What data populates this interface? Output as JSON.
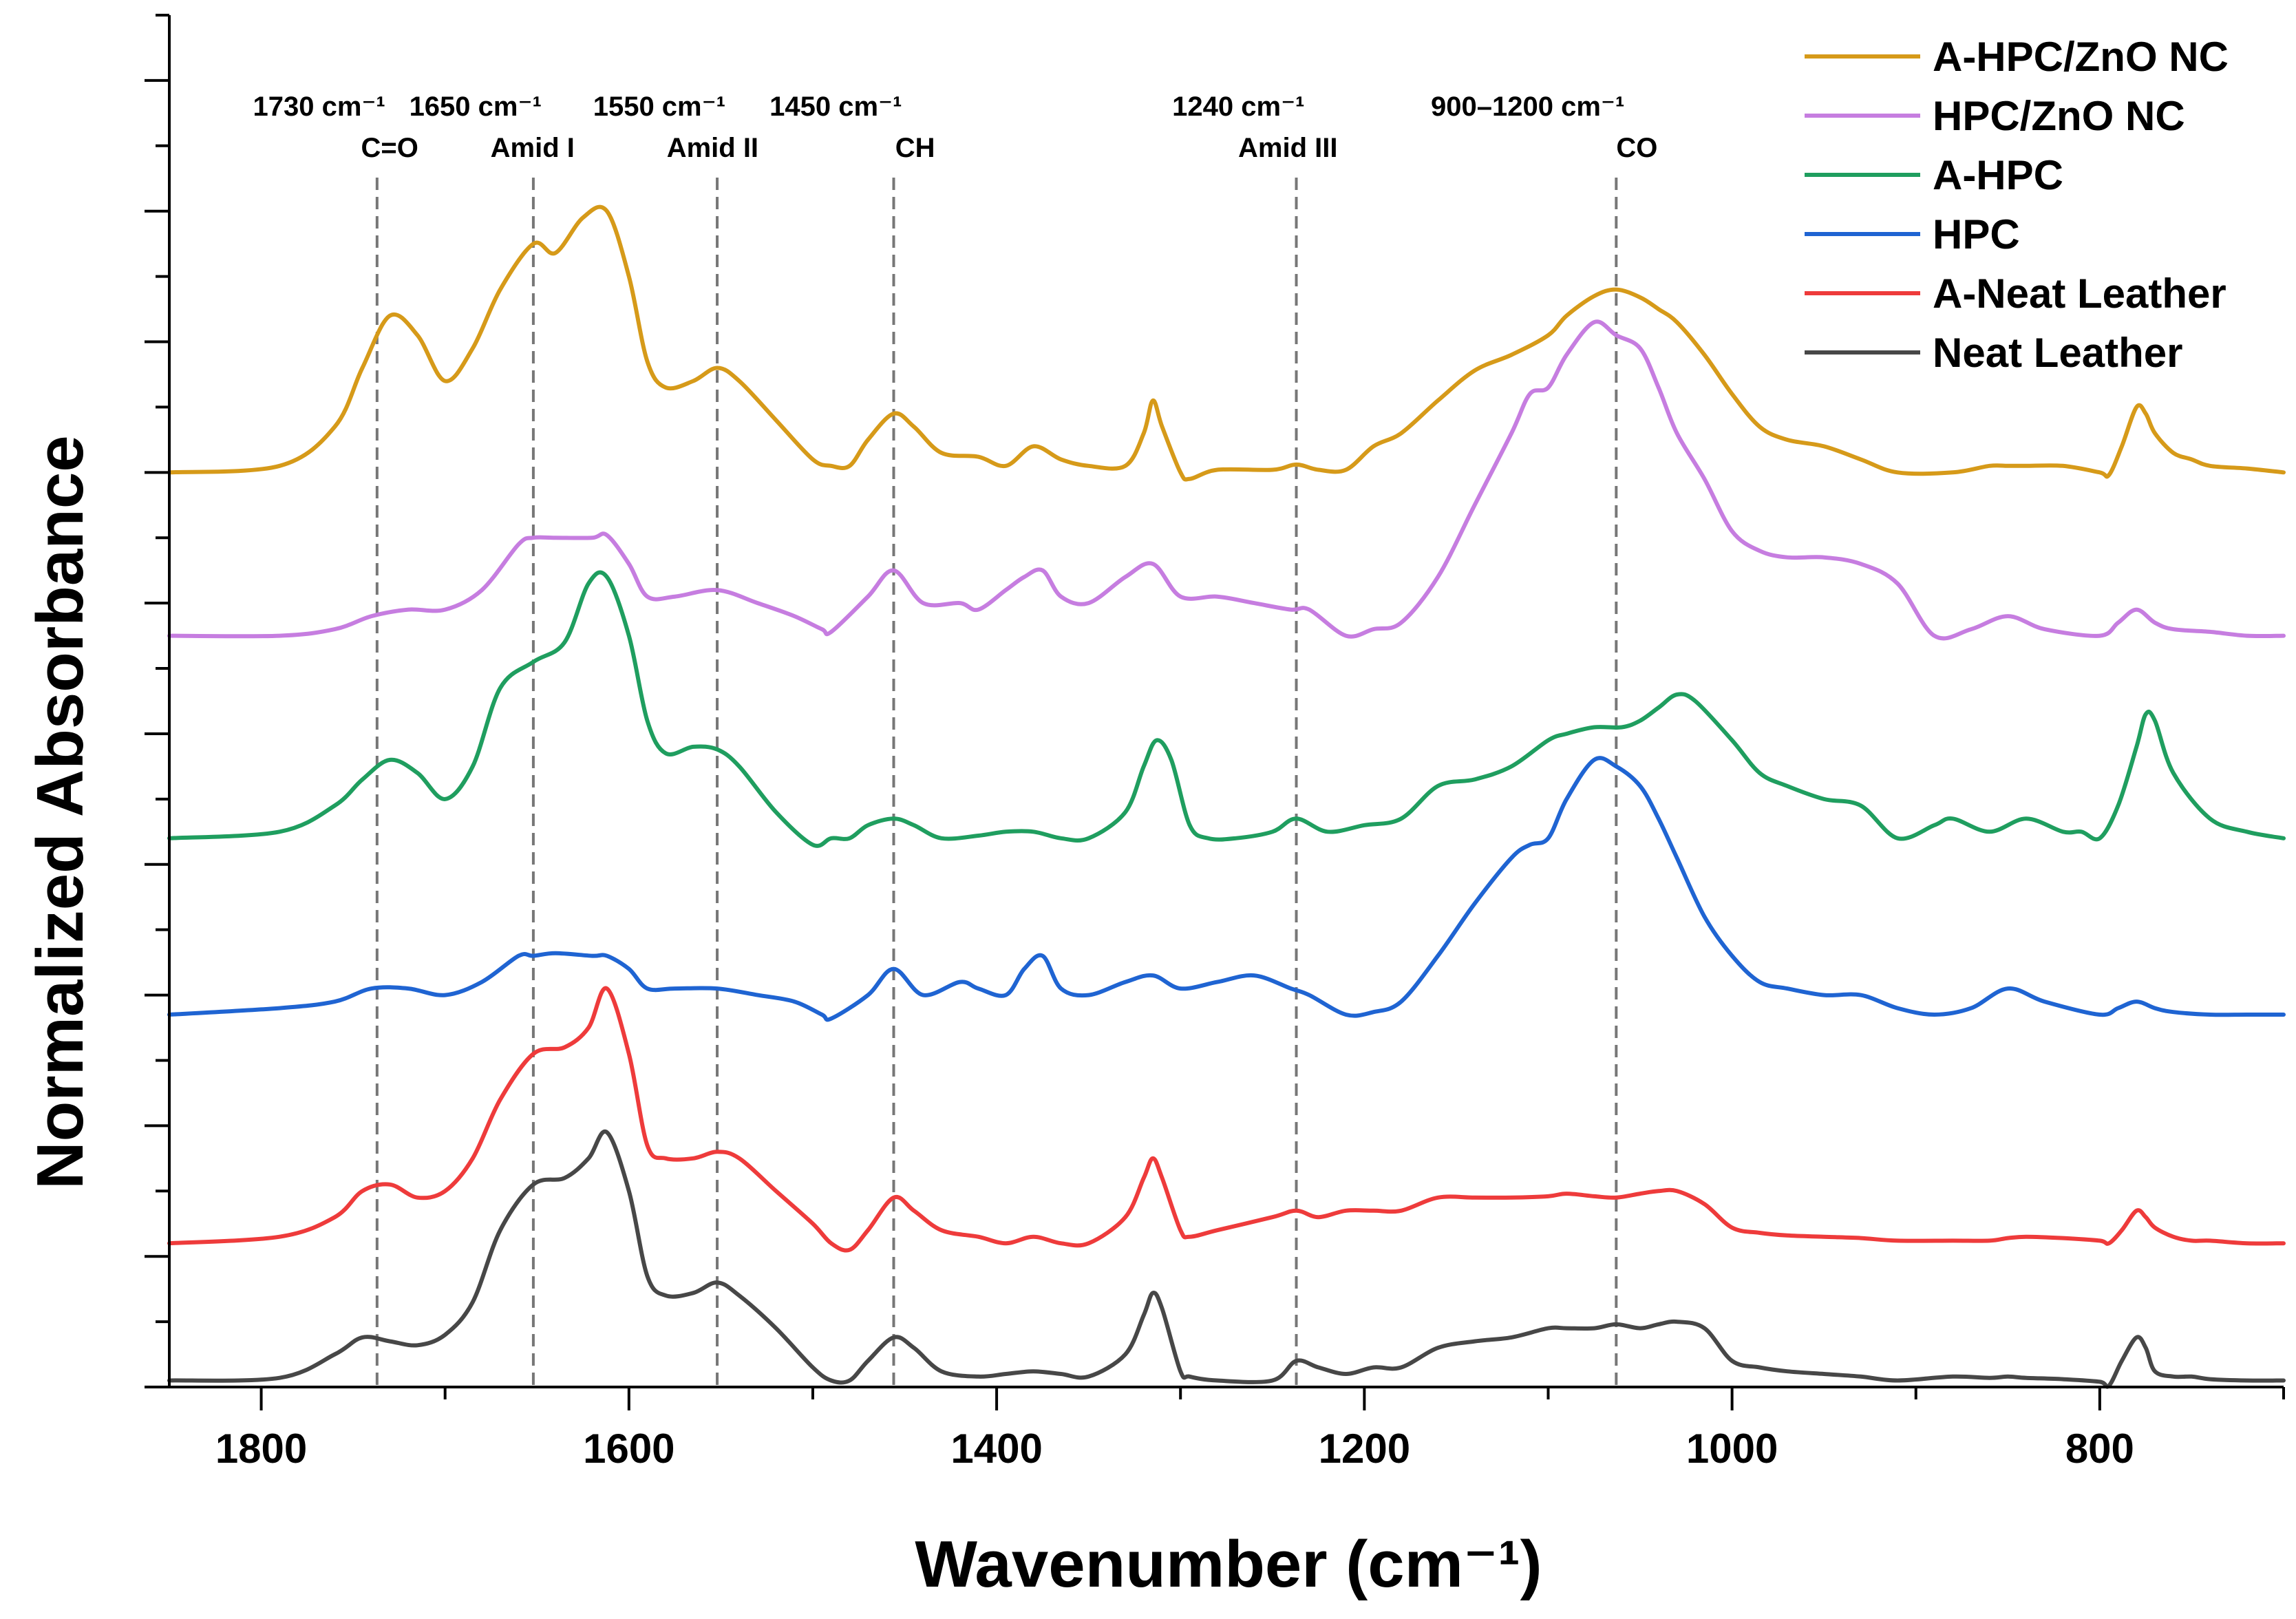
{
  "chart_data": {
    "type": "line",
    "title": "",
    "xlabel": "Wavenumber (cm⁻¹)",
    "ylabel": "Normalized Absorbance",
    "xlim": [
      1850,
      700
    ],
    "x_reversed": true,
    "ylim": [
      0,
      10.5
    ],
    "x_ticks": [
      1800,
      1600,
      1400,
      1200,
      1000,
      800
    ],
    "x_tick_labels": [
      "1800",
      "1600",
      "1400",
      "1200",
      "1000",
      "800"
    ],
    "y_tick_labels_visible": false,
    "grid": false,
    "legend_position": "top-right",
    "annotations": [
      {
        "x": 1737,
        "label_top": "1730 cm⁻¹",
        "label_bottom": "C=O"
      },
      {
        "x": 1652,
        "label_top": "1650 cm⁻¹",
        "label_bottom": "Amid I"
      },
      {
        "x": 1552,
        "label_top": "1550 cm⁻¹",
        "label_bottom": "Amid II"
      },
      {
        "x": 1456,
        "label_top": "1450 cm⁻¹",
        "label_bottom": "CH"
      },
      {
        "x": 1237,
        "label_top": "1240 cm⁻¹",
        "label_bottom": "Amid III"
      },
      {
        "x": 1063,
        "label_top": "900–1200 cm⁻¹",
        "label_bottom": "CO"
      }
    ],
    "series": [
      {
        "name": "A-HPC/ZnO NC",
        "color": "#D69A19",
        "x": [
          1850,
          1790,
          1760,
          1745,
          1730,
          1715,
          1700,
          1685,
          1670,
          1652,
          1640,
          1625,
          1612,
          1600,
          1590,
          1580,
          1565,
          1552,
          1540,
          1520,
          1500,
          1490,
          1480,
          1470,
          1456,
          1445,
          1430,
          1410,
          1395,
          1380,
          1365,
          1350,
          1330,
          1320,
          1315,
          1310,
          1300,
          1295,
          1280,
          1250,
          1237,
          1225,
          1210,
          1195,
          1180,
          1160,
          1140,
          1120,
          1100,
          1090,
          1075,
          1063,
          1050,
          1040,
          1030,
          1015,
          1000,
          985,
          970,
          950,
          930,
          910,
          880,
          860,
          850,
          840,
          820,
          800,
          795,
          788,
          780,
          775,
          770,
          760,
          750,
          740,
          720,
          700
        ],
        "y": [
          7.0,
          7.05,
          7.35,
          7.8,
          8.2,
          8.05,
          7.7,
          7.95,
          8.4,
          8.75,
          8.68,
          8.95,
          9.0,
          8.5,
          7.85,
          7.65,
          7.7,
          7.8,
          7.7,
          7.4,
          7.1,
          7.05,
          7.05,
          7.25,
          7.45,
          7.35,
          7.15,
          7.12,
          7.05,
          7.2,
          7.1,
          7.05,
          7.05,
          7.3,
          7.55,
          7.35,
          7.0,
          6.95,
          7.02,
          7.02,
          7.06,
          7.02,
          7.02,
          7.2,
          7.3,
          7.55,
          7.78,
          7.9,
          8.05,
          8.2,
          8.35,
          8.4,
          8.34,
          8.25,
          8.15,
          7.9,
          7.6,
          7.35,
          7.25,
          7.2,
          7.1,
          7.0,
          7.0,
          7.05,
          7.05,
          7.05,
          7.05,
          7.0,
          6.98,
          7.2,
          7.5,
          7.45,
          7.3,
          7.15,
          7.1,
          7.05,
          7.03,
          7.0
        ]
      },
      {
        "name": "HPC/ZnO NC",
        "color": "#C67DE0",
        "x": [
          1850,
          1790,
          1760,
          1740,
          1720,
          1700,
          1680,
          1660,
          1652,
          1640,
          1620,
          1612,
          1600,
          1590,
          1575,
          1552,
          1530,
          1510,
          1495,
          1490,
          1470,
          1456,
          1440,
          1420,
          1410,
          1395,
          1385,
          1375,
          1365,
          1350,
          1330,
          1315,
          1300,
          1280,
          1260,
          1240,
          1230,
          1210,
          1195,
          1180,
          1160,
          1140,
          1120,
          1110,
          1100,
          1090,
          1075,
          1063,
          1050,
          1040,
          1030,
          1015,
          1000,
          985,
          970,
          950,
          930,
          910,
          890,
          870,
          850,
          830,
          800,
          790,
          780,
          770,
          760,
          740,
          720,
          700
        ],
        "y": [
          5.75,
          5.75,
          5.8,
          5.9,
          5.95,
          5.95,
          6.1,
          6.45,
          6.5,
          6.5,
          6.5,
          6.52,
          6.3,
          6.05,
          6.05,
          6.1,
          6.0,
          5.9,
          5.8,
          5.78,
          6.05,
          6.25,
          6.0,
          6.0,
          5.95,
          6.1,
          6.2,
          6.25,
          6.05,
          6.0,
          6.2,
          6.3,
          6.05,
          6.05,
          6.0,
          5.95,
          5.95,
          5.75,
          5.8,
          5.85,
          6.2,
          6.75,
          7.3,
          7.6,
          7.65,
          7.9,
          8.15,
          8.05,
          7.95,
          7.65,
          7.3,
          6.95,
          6.55,
          6.4,
          6.35,
          6.35,
          6.3,
          6.15,
          5.75,
          5.8,
          5.9,
          5.8,
          5.75,
          5.85,
          5.95,
          5.85,
          5.8,
          5.78,
          5.75,
          5.75
        ]
      },
      {
        "name": "A-HPC",
        "color": "#1F9E5F",
        "x": [
          1850,
          1790,
          1760,
          1745,
          1730,
          1715,
          1700,
          1685,
          1670,
          1652,
          1635,
          1622,
          1612,
          1600,
          1590,
          1580,
          1565,
          1552,
          1540,
          1520,
          1500,
          1490,
          1480,
          1470,
          1456,
          1445,
          1430,
          1410,
          1395,
          1380,
          1365,
          1350,
          1330,
          1320,
          1313,
          1305,
          1295,
          1285,
          1270,
          1250,
          1237,
          1220,
          1200,
          1180,
          1160,
          1140,
          1120,
          1100,
          1090,
          1075,
          1060,
          1050,
          1040,
          1030,
          1020,
          1000,
          985,
          970,
          950,
          930,
          910,
          890,
          880,
          860,
          840,
          820,
          810,
          800,
          790,
          780,
          775,
          770,
          760,
          740,
          720,
          700
        ],
        "y": [
          4.2,
          4.25,
          4.45,
          4.65,
          4.8,
          4.7,
          4.5,
          4.75,
          5.35,
          5.55,
          5.7,
          6.15,
          6.2,
          5.75,
          5.1,
          4.85,
          4.9,
          4.88,
          4.75,
          4.4,
          4.15,
          4.2,
          4.2,
          4.3,
          4.35,
          4.3,
          4.2,
          4.22,
          4.25,
          4.25,
          4.2,
          4.2,
          4.4,
          4.75,
          4.95,
          4.8,
          4.3,
          4.2,
          4.2,
          4.25,
          4.35,
          4.25,
          4.3,
          4.35,
          4.6,
          4.65,
          4.75,
          4.95,
          5.0,
          5.05,
          5.05,
          5.1,
          5.2,
          5.3,
          5.25,
          4.95,
          4.7,
          4.6,
          4.5,
          4.45,
          4.2,
          4.3,
          4.35,
          4.25,
          4.35,
          4.25,
          4.25,
          4.2,
          4.45,
          4.9,
          5.15,
          5.1,
          4.7,
          4.35,
          4.25,
          4.2
        ]
      },
      {
        "name": "HPC",
        "color": "#1F64D2",
        "x": [
          1850,
          1790,
          1760,
          1740,
          1720,
          1700,
          1680,
          1660,
          1652,
          1640,
          1620,
          1612,
          1600,
          1590,
          1575,
          1552,
          1530,
          1510,
          1495,
          1490,
          1470,
          1456,
          1440,
          1420,
          1410,
          1395,
          1385,
          1375,
          1365,
          1350,
          1330,
          1315,
          1300,
          1280,
          1260,
          1240,
          1230,
          1210,
          1195,
          1180,
          1160,
          1140,
          1120,
          1110,
          1100,
          1090,
          1075,
          1063,
          1050,
          1040,
          1030,
          1015,
          1000,
          985,
          970,
          950,
          930,
          910,
          890,
          870,
          850,
          830,
          800,
          790,
          780,
          770,
          760,
          740,
          720,
          700
        ],
        "y": [
          2.85,
          2.9,
          2.95,
          3.05,
          3.05,
          3.0,
          3.1,
          3.3,
          3.3,
          3.32,
          3.3,
          3.3,
          3.2,
          3.05,
          3.05,
          3.05,
          3.0,
          2.95,
          2.85,
          2.82,
          3.0,
          3.2,
          3.0,
          3.1,
          3.05,
          3.0,
          3.2,
          3.3,
          3.05,
          3.0,
          3.1,
          3.15,
          3.05,
          3.1,
          3.15,
          3.05,
          3.0,
          2.85,
          2.87,
          2.95,
          3.3,
          3.7,
          4.05,
          4.15,
          4.2,
          4.5,
          4.8,
          4.75,
          4.6,
          4.35,
          4.05,
          3.6,
          3.3,
          3.1,
          3.05,
          3.0,
          3.0,
          2.9,
          2.85,
          2.9,
          3.05,
          2.95,
          2.85,
          2.9,
          2.95,
          2.9,
          2.87,
          2.85,
          2.85,
          2.85
        ]
      },
      {
        "name": "A-Neat Leather",
        "color": "#EE3B3B",
        "x": [
          1850,
          1790,
          1760,
          1745,
          1730,
          1715,
          1700,
          1685,
          1670,
          1652,
          1635,
          1622,
          1612,
          1600,
          1590,
          1580,
          1565,
          1552,
          1540,
          1520,
          1500,
          1490,
          1480,
          1470,
          1456,
          1445,
          1430,
          1410,
          1395,
          1380,
          1365,
          1350,
          1330,
          1320,
          1315,
          1310,
          1300,
          1295,
          1280,
          1250,
          1237,
          1225,
          1210,
          1195,
          1180,
          1160,
          1140,
          1120,
          1100,
          1090,
          1075,
          1063,
          1050,
          1040,
          1030,
          1015,
          1000,
          985,
          970,
          950,
          930,
          910,
          880,
          860,
          850,
          840,
          820,
          800,
          795,
          788,
          780,
          775,
          770,
          760,
          750,
          740,
          720,
          700
        ],
        "y": [
          1.1,
          1.15,
          1.3,
          1.5,
          1.55,
          1.45,
          1.5,
          1.75,
          2.2,
          2.55,
          2.6,
          2.75,
          3.05,
          2.55,
          1.85,
          1.75,
          1.75,
          1.8,
          1.75,
          1.5,
          1.25,
          1.1,
          1.05,
          1.2,
          1.45,
          1.35,
          1.2,
          1.15,
          1.1,
          1.15,
          1.1,
          1.1,
          1.3,
          1.6,
          1.75,
          1.6,
          1.2,
          1.15,
          1.2,
          1.3,
          1.35,
          1.3,
          1.35,
          1.35,
          1.35,
          1.45,
          1.45,
          1.45,
          1.46,
          1.48,
          1.46,
          1.45,
          1.48,
          1.5,
          1.5,
          1.4,
          1.22,
          1.18,
          1.16,
          1.15,
          1.14,
          1.12,
          1.12,
          1.12,
          1.14,
          1.15,
          1.14,
          1.12,
          1.1,
          1.2,
          1.35,
          1.3,
          1.22,
          1.15,
          1.12,
          1.12,
          1.1,
          1.1
        ]
      },
      {
        "name": "Neat Leather",
        "color": "#474747",
        "x": [
          1850,
          1790,
          1760,
          1745,
          1730,
          1715,
          1700,
          1685,
          1670,
          1652,
          1635,
          1622,
          1612,
          1600,
          1590,
          1580,
          1565,
          1552,
          1540,
          1520,
          1500,
          1490,
          1480,
          1470,
          1456,
          1445,
          1430,
          1410,
          1395,
          1380,
          1365,
          1350,
          1330,
          1320,
          1315,
          1310,
          1300,
          1295,
          1280,
          1250,
          1237,
          1225,
          1210,
          1195,
          1180,
          1160,
          1140,
          1120,
          1100,
          1090,
          1075,
          1063,
          1050,
          1040,
          1030,
          1015,
          1000,
          985,
          970,
          950,
          930,
          910,
          880,
          860,
          850,
          840,
          820,
          800,
          795,
          788,
          780,
          775,
          770,
          760,
          750,
          740,
          720,
          700
        ],
        "y": [
          0.05,
          0.07,
          0.25,
          0.38,
          0.35,
          0.32,
          0.4,
          0.65,
          1.2,
          1.55,
          1.6,
          1.75,
          1.95,
          1.5,
          0.85,
          0.7,
          0.72,
          0.8,
          0.7,
          0.45,
          0.15,
          0.05,
          0.05,
          0.2,
          0.38,
          0.3,
          0.12,
          0.08,
          0.1,
          0.12,
          0.1,
          0.08,
          0.25,
          0.55,
          0.72,
          0.6,
          0.12,
          0.08,
          0.05,
          0.05,
          0.2,
          0.15,
          0.1,
          0.15,
          0.15,
          0.3,
          0.35,
          0.38,
          0.45,
          0.45,
          0.45,
          0.48,
          0.45,
          0.48,
          0.5,
          0.45,
          0.2,
          0.15,
          0.12,
          0.1,
          0.08,
          0.05,
          0.08,
          0.07,
          0.08,
          0.07,
          0.06,
          0.04,
          0.01,
          0.2,
          0.38,
          0.3,
          0.12,
          0.08,
          0.08,
          0.06,
          0.05,
          0.05
        ]
      }
    ]
  }
}
